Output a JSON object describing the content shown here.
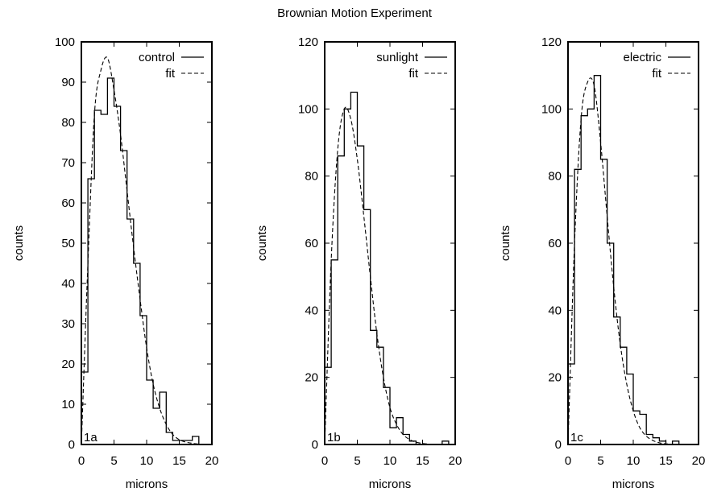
{
  "title": "Brownian Motion Experiment",
  "chart_data": [
    {
      "type": "histogram",
      "panel_label": "1a",
      "xlabel": "microns",
      "ylabel": "counts",
      "xlim": [
        0,
        20
      ],
      "ylim": [
        0,
        100
      ],
      "xticks": [
        0,
        5,
        10,
        15,
        20
      ],
      "yticks": [
        0,
        10,
        20,
        30,
        40,
        50,
        60,
        70,
        80,
        90,
        100
      ],
      "legend_position": "top-right",
      "bin_width": 1,
      "series": [
        {
          "name": "control",
          "style": "step",
          "x": [
            0,
            1,
            2,
            3,
            4,
            5,
            6,
            7,
            8,
            9,
            10,
            11,
            12,
            13,
            14,
            15,
            16,
            17
          ],
          "values": [
            18,
            66,
            83,
            82,
            91,
            84,
            73,
            56,
            45,
            32,
            16,
            9,
            13,
            3,
            1,
            1,
            1,
            2
          ]
        },
        {
          "name": "fit",
          "style": "dashed",
          "x": [
            0,
            1,
            2,
            3,
            4,
            5,
            6,
            7,
            8,
            9,
            10,
            11,
            12,
            13,
            14,
            15,
            16,
            17,
            18
          ],
          "values": [
            0,
            45,
            82,
            93,
            96,
            88,
            77,
            63,
            49,
            36,
            24,
            15,
            9,
            5,
            2.5,
            1.2,
            0.6,
            0.3,
            0.1
          ]
        }
      ]
    },
    {
      "type": "histogram",
      "panel_label": "1b",
      "xlabel": "microns",
      "ylabel": "counts",
      "xlim": [
        0,
        20
      ],
      "ylim": [
        0,
        120
      ],
      "xticks": [
        0,
        5,
        10,
        15,
        20
      ],
      "yticks": [
        0,
        20,
        40,
        60,
        80,
        100,
        120
      ],
      "legend_position": "top-right",
      "bin_width": 1,
      "series": [
        {
          "name": "sunlight",
          "style": "step",
          "x": [
            0,
            1,
            2,
            3,
            4,
            5,
            6,
            7,
            8,
            9,
            10,
            11,
            12,
            13,
            14,
            15,
            16,
            17,
            18
          ],
          "values": [
            23,
            55,
            86,
            100,
            105,
            89,
            70,
            34,
            29,
            17,
            5,
            8,
            3,
            1,
            0,
            0,
            0,
            0,
            1
          ]
        },
        {
          "name": "fit",
          "style": "dashed",
          "x": [
            0,
            1,
            2,
            3,
            4,
            5,
            6,
            7,
            8,
            9,
            10,
            11,
            12,
            13,
            14,
            15,
            16
          ],
          "values": [
            0,
            55,
            88,
            100,
            97,
            85,
            68,
            50,
            33,
            20,
            11,
            6,
            3,
            1.5,
            0.7,
            0.3,
            0.1
          ]
        }
      ]
    },
    {
      "type": "histogram",
      "panel_label": "1c",
      "xlabel": "microns",
      "ylabel": "counts",
      "xlim": [
        0,
        20
      ],
      "ylim": [
        0,
        120
      ],
      "xticks": [
        0,
        5,
        10,
        15,
        20
      ],
      "yticks": [
        0,
        20,
        40,
        60,
        80,
        100,
        120
      ],
      "legend_position": "top-right",
      "bin_width": 1,
      "series": [
        {
          "name": "electric",
          "style": "step",
          "x": [
            0,
            1,
            2,
            3,
            4,
            5,
            6,
            7,
            8,
            9,
            10,
            11,
            12,
            13,
            14,
            15,
            16
          ],
          "values": [
            24,
            82,
            98,
            100,
            110,
            85,
            60,
            38,
            29,
            21,
            10,
            9,
            3,
            2,
            1,
            0,
            1
          ]
        },
        {
          "name": "fit",
          "style": "dashed",
          "x": [
            0,
            1,
            2,
            3,
            4,
            5,
            6,
            7,
            8,
            9,
            10,
            11,
            12,
            13,
            14,
            15,
            16
          ],
          "values": [
            0,
            60,
            97,
            108,
            107,
            90,
            68,
            47,
            30,
            18,
            10,
            5,
            2.5,
            1.2,
            0.5,
            0.2,
            0.1
          ]
        }
      ]
    }
  ]
}
